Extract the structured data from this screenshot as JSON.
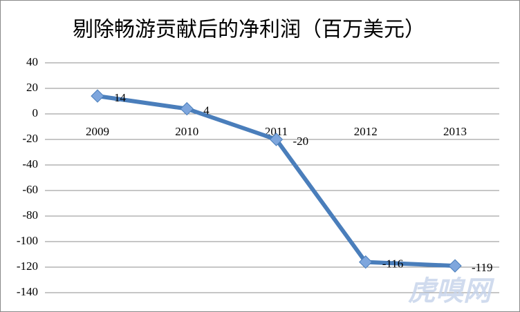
{
  "chart_data": {
    "type": "line",
    "title": "剔除畅游贡献后的净利润（百万美元）",
    "categories": [
      "2009",
      "2010",
      "2011",
      "2012",
      "2013"
    ],
    "series": [
      {
        "name": "净利润",
        "color": "#4a7ebb",
        "values": [
          14,
          4,
          -20,
          -116,
          -119
        ]
      }
    ],
    "ylim": [
      -140,
      40
    ],
    "yticks": [
      -140,
      -120,
      -100,
      -80,
      -60,
      -40,
      -20,
      0,
      20,
      40
    ],
    "grid": true,
    "watermark": "虎嗅网"
  }
}
